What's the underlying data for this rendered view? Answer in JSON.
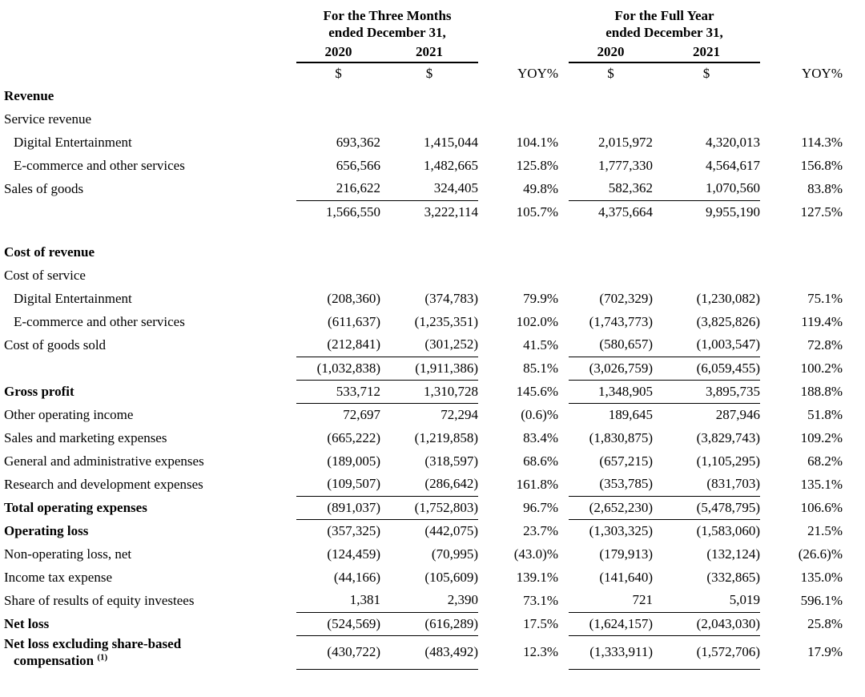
{
  "page": {
    "background": "#ffffff",
    "text_color": "#000000"
  },
  "header": {
    "groups": [
      {
        "title_line1": "For the Three Months",
        "title_line2": "ended December 31,",
        "year_left": "2020",
        "year_right": "2021",
        "currency_symbol": "$",
        "yoy_label": "YOY%"
      },
      {
        "title_line1": "For the Full Year",
        "title_line2": "ended December 31,",
        "year_left": "2020",
        "year_right": "2021",
        "currency_symbol": "$",
        "yoy_label": "YOY%"
      }
    ]
  },
  "rows": [
    {
      "label": "Revenue",
      "bold": true,
      "indent": 0,
      "values": null
    },
    {
      "label": "Service revenue",
      "bold": false,
      "indent": 0,
      "values": null
    },
    {
      "label": "Digital Entertainment",
      "bold": false,
      "indent": 1,
      "values": [
        "693,362",
        "1,415,044",
        "104.1%",
        "2,015,972",
        "4,320,013",
        "114.3%"
      ]
    },
    {
      "label": "E-commerce and other services",
      "bold": false,
      "indent": 1,
      "values": [
        "656,566",
        "1,482,665",
        "125.8%",
        "1,777,330",
        "4,564,617",
        "156.8%"
      ]
    },
    {
      "label": "Sales of goods",
      "bold": false,
      "indent": 0,
      "values": [
        "216,622",
        "324,405",
        "49.8%",
        "582,362",
        "1,070,560",
        "83.8%"
      ],
      "rule_below": true
    },
    {
      "label": "",
      "bold": false,
      "indent": 0,
      "values": [
        "1,566,550",
        "3,222,114",
        "105.7%",
        "4,375,664",
        "9,955,190",
        "127.5%"
      ]
    },
    {
      "spacer": true
    },
    {
      "label": "Cost of revenue",
      "bold": true,
      "indent": 0,
      "values": null
    },
    {
      "label": "Cost of service",
      "bold": false,
      "indent": 0,
      "values": null
    },
    {
      "label": "Digital Entertainment",
      "bold": false,
      "indent": 1,
      "values": [
        "(208,360)",
        "(374,783)",
        "79.9%",
        "(702,329)",
        "(1,230,082)",
        "75.1%"
      ]
    },
    {
      "label": "E-commerce and other services",
      "bold": false,
      "indent": 1,
      "values": [
        "(611,637)",
        "(1,235,351)",
        "102.0%",
        "(1,743,773)",
        "(3,825,826)",
        "119.4%"
      ]
    },
    {
      "label": "Cost of goods sold",
      "bold": false,
      "indent": 0,
      "values": [
        "(212,841)",
        "(301,252)",
        "41.5%",
        "(580,657)",
        "(1,003,547)",
        "72.8%"
      ],
      "rule_below": true
    },
    {
      "label": "",
      "bold": false,
      "indent": 0,
      "values": [
        "(1,032,838)",
        "(1,911,386)",
        "85.1%",
        "(3,026,759)",
        "(6,059,455)",
        "100.2%"
      ],
      "rule_below": true
    },
    {
      "label": "Gross profit",
      "bold": true,
      "indent": 0,
      "values": [
        "533,712",
        "1,310,728",
        "145.6%",
        "1,348,905",
        "3,895,735",
        "188.8%"
      ],
      "rule_below": true
    },
    {
      "label": "Other operating income",
      "bold": false,
      "indent": 0,
      "values": [
        "72,697",
        "72,294",
        "(0.6)%",
        "189,645",
        "287,946",
        "51.8%"
      ]
    },
    {
      "label": "Sales and marketing expenses",
      "bold": false,
      "indent": 0,
      "values": [
        "(665,222)",
        "(1,219,858)",
        "83.4%",
        "(1,830,875)",
        "(3,829,743)",
        "109.2%"
      ]
    },
    {
      "label": "General and administrative expenses",
      "bold": false,
      "indent": 0,
      "values": [
        "(189,005)",
        "(318,597)",
        "68.6%",
        "(657,215)",
        "(1,105,295)",
        "68.2%"
      ]
    },
    {
      "label": "Research and development expenses",
      "bold": false,
      "indent": 0,
      "values": [
        "(109,507)",
        "(286,642)",
        "161.8%",
        "(353,785)",
        "(831,703)",
        "135.1%"
      ],
      "rule_below": true
    },
    {
      "label": "Total operating expenses",
      "bold": true,
      "indent": 0,
      "values": [
        "(891,037)",
        "(1,752,803)",
        "96.7%",
        "(2,652,230)",
        "(5,478,795)",
        "106.6%"
      ],
      "rule_below": true
    },
    {
      "label": "Operating loss",
      "bold": true,
      "indent": 0,
      "values": [
        "(357,325)",
        "(442,075)",
        "23.7%",
        "(1,303,325)",
        "(1,583,060)",
        "21.5%"
      ]
    },
    {
      "label": "Non-operating loss, net",
      "bold": false,
      "indent": 0,
      "values": [
        "(124,459)",
        "(70,995)",
        "(43.0)%",
        "(179,913)",
        "(132,124)",
        "(26.6)%"
      ]
    },
    {
      "label": "Income tax expense",
      "bold": false,
      "indent": 0,
      "values": [
        "(44,166)",
        "(105,609)",
        "139.1%",
        "(141,640)",
        "(332,865)",
        "135.0%"
      ]
    },
    {
      "label": "Share of results of equity investees",
      "bold": false,
      "indent": 0,
      "values": [
        "1,381",
        "2,390",
        "73.1%",
        "721",
        "5,019",
        "596.1%"
      ],
      "rule_below": true
    },
    {
      "label": "Net loss",
      "bold": true,
      "indent": 0,
      "values": [
        "(524,569)",
        "(616,289)",
        "17.5%",
        "(1,624,157)",
        "(2,043,030)",
        "25.8%"
      ],
      "rule_below": true
    },
    {
      "label": "Net loss excluding share-based",
      "label_line2": "compensation",
      "label_superscript": "(1)",
      "bold": true,
      "indent": 0,
      "values": [
        "(430,722)",
        "(483,492)",
        "12.3%",
        "(1,333,911)",
        "(1,572,706)",
        "17.9%"
      ],
      "rule_below": true
    }
  ]
}
